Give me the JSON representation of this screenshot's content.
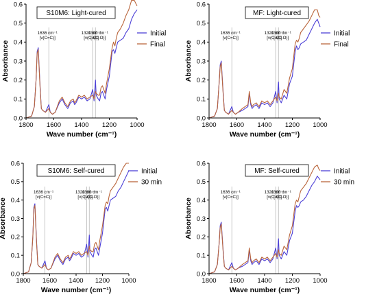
{
  "chart_data": [
    {
      "type": "line",
      "title": "S10M6: Light-cured",
      "xlabel": "Wave number (cm⁻¹)",
      "ylabel": "Absorbance",
      "xlim": [
        1800,
        1000
      ],
      "ylim": [
        0,
        0.6
      ],
      "xticks": [
        1800,
        1600,
        1400,
        1200,
        1000
      ],
      "yticks": [
        0.0,
        0.1,
        0.2,
        0.3,
        0.4,
        0.5,
        0.6
      ],
      "annotations": [
        {
          "x": 1636,
          "line1": "1636 cm⁻¹",
          "line2": "[ν(C=C)]"
        },
        {
          "x": 1320,
          "line1": "1320 cm⁻¹",
          "line2": "[ν(C-O)]"
        },
        {
          "x": 1300,
          "line1": "1300 cm⁻¹",
          "line2": "[ν(C-O)]"
        }
      ],
      "legend_position": "right",
      "series": [
        {
          "name": "Initial",
          "color": "#4b3fd6",
          "x": [
            1800,
            1760,
            1740,
            1728,
            1720,
            1712,
            1700,
            1690,
            1680,
            1660,
            1636,
            1625,
            1610,
            1590,
            1560,
            1540,
            1520,
            1500,
            1480,
            1460,
            1450,
            1440,
            1420,
            1400,
            1380,
            1360,
            1340,
            1320,
            1310,
            1300,
            1295,
            1280,
            1270,
            1260,
            1250,
            1240,
            1230,
            1220,
            1200,
            1180,
            1170,
            1160,
            1150,
            1140,
            1120,
            1100,
            1080,
            1060,
            1040,
            1020,
            1000
          ],
          "y": [
            0.0,
            0.01,
            0.06,
            0.2,
            0.35,
            0.37,
            0.18,
            0.05,
            0.04,
            0.03,
            0.07,
            0.03,
            0.02,
            0.03,
            0.08,
            0.1,
            0.07,
            0.05,
            0.08,
            0.09,
            0.07,
            0.08,
            0.11,
            0.1,
            0.11,
            0.09,
            0.1,
            0.15,
            0.09,
            0.2,
            0.12,
            0.1,
            0.09,
            0.13,
            0.14,
            0.12,
            0.1,
            0.15,
            0.22,
            0.35,
            0.36,
            0.34,
            0.37,
            0.4,
            0.41,
            0.42,
            0.45,
            0.47,
            0.52,
            0.55,
            0.57
          ]
        },
        {
          "name": "Final",
          "color": "#b9653b",
          "x": [
            1800,
            1760,
            1740,
            1728,
            1720,
            1712,
            1700,
            1690,
            1680,
            1660,
            1636,
            1625,
            1610,
            1590,
            1560,
            1540,
            1520,
            1500,
            1480,
            1460,
            1450,
            1440,
            1420,
            1400,
            1380,
            1360,
            1340,
            1320,
            1310,
            1300,
            1295,
            1280,
            1270,
            1260,
            1250,
            1240,
            1230,
            1220,
            1200,
            1180,
            1170,
            1160,
            1150,
            1140,
            1120,
            1100,
            1080,
            1060,
            1040,
            1020,
            1000
          ],
          "y": [
            0.0,
            0.01,
            0.06,
            0.2,
            0.34,
            0.36,
            0.17,
            0.05,
            0.04,
            0.03,
            0.05,
            0.03,
            0.02,
            0.03,
            0.09,
            0.11,
            0.08,
            0.06,
            0.09,
            0.1,
            0.08,
            0.09,
            0.12,
            0.11,
            0.12,
            0.1,
            0.11,
            0.12,
            0.1,
            0.14,
            0.13,
            0.12,
            0.12,
            0.16,
            0.17,
            0.15,
            0.13,
            0.18,
            0.26,
            0.37,
            0.4,
            0.38,
            0.42,
            0.45,
            0.47,
            0.5,
            0.54,
            0.57,
            0.62,
            0.62,
            0.59
          ]
        }
      ]
    },
    {
      "type": "line",
      "title": "MF: Light-cured",
      "xlabel": "Wave number (cm⁻¹)",
      "ylabel": "Absorbance",
      "xlim": [
        1800,
        1000
      ],
      "ylim": [
        0,
        0.6
      ],
      "xticks": [
        1800,
        1600,
        1400,
        1200,
        1000
      ],
      "yticks": [
        0.0,
        0.1,
        0.2,
        0.3,
        0.4,
        0.5,
        0.6
      ],
      "annotations": [
        {
          "x": 1636,
          "line1": "1636 cm⁻¹",
          "line2": "[ν(C=C)]"
        },
        {
          "x": 1320,
          "line1": "1320 cm⁻¹",
          "line2": "[ν(C-O)]"
        },
        {
          "x": 1300,
          "line1": "1300 cm⁻¹",
          "line2": "[ν(C-O)]"
        }
      ],
      "legend_position": "right",
      "series": [
        {
          "name": "Initial",
          "color": "#4b3fd6",
          "x": [
            1800,
            1760,
            1740,
            1728,
            1720,
            1712,
            1700,
            1690,
            1680,
            1660,
            1636,
            1625,
            1610,
            1590,
            1560,
            1540,
            1520,
            1510,
            1500,
            1490,
            1480,
            1460,
            1440,
            1420,
            1400,
            1380,
            1360,
            1340,
            1320,
            1310,
            1300,
            1295,
            1280,
            1260,
            1240,
            1220,
            1200,
            1180,
            1170,
            1160,
            1150,
            1140,
            1120,
            1100,
            1080,
            1060,
            1040,
            1020,
            1010,
            1000
          ],
          "y": [
            0.0,
            0.01,
            0.05,
            0.18,
            0.28,
            0.3,
            0.15,
            0.04,
            0.03,
            0.02,
            0.06,
            0.03,
            0.02,
            0.03,
            0.04,
            0.05,
            0.06,
            0.13,
            0.07,
            0.05,
            0.06,
            0.07,
            0.05,
            0.08,
            0.07,
            0.08,
            0.06,
            0.08,
            0.14,
            0.08,
            0.19,
            0.1,
            0.08,
            0.12,
            0.1,
            0.18,
            0.22,
            0.35,
            0.38,
            0.36,
            0.37,
            0.39,
            0.4,
            0.41,
            0.44,
            0.47,
            0.5,
            0.52,
            0.5,
            0.48
          ]
        },
        {
          "name": "Final",
          "color": "#b9653b",
          "x": [
            1800,
            1760,
            1740,
            1728,
            1720,
            1712,
            1700,
            1690,
            1680,
            1660,
            1636,
            1625,
            1610,
            1590,
            1560,
            1540,
            1520,
            1510,
            1500,
            1490,
            1480,
            1460,
            1440,
            1420,
            1400,
            1380,
            1360,
            1340,
            1320,
            1310,
            1300,
            1295,
            1280,
            1260,
            1240,
            1220,
            1200,
            1180,
            1170,
            1160,
            1150,
            1140,
            1120,
            1100,
            1080,
            1060,
            1040,
            1020,
            1010,
            1000
          ],
          "y": [
            0.0,
            0.01,
            0.05,
            0.18,
            0.27,
            0.29,
            0.14,
            0.04,
            0.03,
            0.02,
            0.04,
            0.03,
            0.02,
            0.03,
            0.05,
            0.06,
            0.07,
            0.14,
            0.08,
            0.06,
            0.07,
            0.08,
            0.06,
            0.09,
            0.08,
            0.09,
            0.07,
            0.09,
            0.11,
            0.09,
            0.13,
            0.11,
            0.1,
            0.15,
            0.13,
            0.21,
            0.26,
            0.39,
            0.41,
            0.4,
            0.42,
            0.45,
            0.47,
            0.49,
            0.51,
            0.54,
            0.57,
            0.57,
            0.54,
            0.53
          ]
        }
      ]
    },
    {
      "type": "line",
      "title": "S10M6: Self-cured",
      "xlabel": "Wave number (cm⁻¹)",
      "ylabel": "Absorbance",
      "xlim": [
        1800,
        1000
      ],
      "ylim": [
        0,
        0.6
      ],
      "xticks": [
        1800,
        1600,
        1400,
        1200,
        1000
      ],
      "yticks": [
        0.0,
        0.1,
        0.2,
        0.3,
        0.4,
        0.5,
        0.6
      ],
      "annotations": [
        {
          "x": 1636,
          "line1": "1636 cm⁻¹",
          "line2": "[ν(C=C)]"
        },
        {
          "x": 1320,
          "line1": "1320 cm⁻¹",
          "line2": "[ν(C-O)]"
        },
        {
          "x": 1300,
          "line1": "1300 cm⁻¹",
          "line2": "[ν(C-O)]"
        }
      ],
      "legend_position": "right",
      "series": [
        {
          "name": "Initial",
          "color": "#4b3fd6",
          "x": [
            1800,
            1760,
            1740,
            1728,
            1720,
            1712,
            1700,
            1690,
            1680,
            1660,
            1636,
            1625,
            1610,
            1590,
            1560,
            1540,
            1520,
            1500,
            1480,
            1460,
            1450,
            1440,
            1420,
            1400,
            1380,
            1360,
            1340,
            1320,
            1310,
            1300,
            1295,
            1280,
            1270,
            1260,
            1250,
            1240,
            1230,
            1220,
            1200,
            1180,
            1170,
            1160,
            1150,
            1140,
            1120,
            1100,
            1080,
            1060,
            1040,
            1020,
            1000
          ],
          "y": [
            0.0,
            0.01,
            0.06,
            0.2,
            0.36,
            0.38,
            0.18,
            0.05,
            0.04,
            0.03,
            0.07,
            0.03,
            0.02,
            0.03,
            0.08,
            0.1,
            0.07,
            0.05,
            0.08,
            0.09,
            0.07,
            0.08,
            0.11,
            0.1,
            0.11,
            0.09,
            0.1,
            0.16,
            0.09,
            0.21,
            0.12,
            0.1,
            0.09,
            0.13,
            0.14,
            0.12,
            0.1,
            0.14,
            0.22,
            0.35,
            0.36,
            0.34,
            0.37,
            0.4,
            0.41,
            0.42,
            0.45,
            0.47,
            0.5,
            0.53,
            0.56
          ]
        },
        {
          "name": "30 min",
          "color": "#b9653b",
          "x": [
            1800,
            1760,
            1740,
            1728,
            1720,
            1712,
            1700,
            1690,
            1680,
            1660,
            1636,
            1625,
            1610,
            1590,
            1560,
            1540,
            1520,
            1500,
            1480,
            1460,
            1450,
            1440,
            1420,
            1400,
            1380,
            1360,
            1340,
            1320,
            1310,
            1300,
            1295,
            1280,
            1270,
            1260,
            1250,
            1240,
            1230,
            1220,
            1200,
            1180,
            1170,
            1160,
            1150,
            1140,
            1120,
            1100,
            1080,
            1060,
            1040,
            1020,
            1000
          ],
          "y": [
            0.0,
            0.01,
            0.06,
            0.2,
            0.35,
            0.37,
            0.17,
            0.05,
            0.04,
            0.03,
            0.05,
            0.03,
            0.02,
            0.03,
            0.09,
            0.11,
            0.08,
            0.06,
            0.09,
            0.1,
            0.08,
            0.09,
            0.12,
            0.11,
            0.12,
            0.1,
            0.11,
            0.12,
            0.1,
            0.15,
            0.13,
            0.12,
            0.12,
            0.16,
            0.17,
            0.15,
            0.13,
            0.18,
            0.26,
            0.37,
            0.39,
            0.38,
            0.42,
            0.45,
            0.47,
            0.49,
            0.52,
            0.55,
            0.58,
            0.6,
            0.6
          ]
        }
      ]
    },
    {
      "type": "line",
      "title": "MF: Self-cured",
      "xlabel": "Wave number (cm⁻¹)",
      "ylabel": "Absorbance",
      "xlim": [
        1800,
        1000
      ],
      "ylim": [
        0,
        0.6
      ],
      "xticks": [
        1800,
        1600,
        1400,
        1200,
        1000
      ],
      "yticks": [
        0.0,
        0.1,
        0.2,
        0.3,
        0.4,
        0.5,
        0.6
      ],
      "annotations": [
        {
          "x": 1636,
          "line1": "1636 cm⁻¹",
          "line2": "[ν(C=C)]"
        },
        {
          "x": 1320,
          "line1": "1320 cm⁻¹",
          "line2": "[ν(C-O)]"
        },
        {
          "x": 1300,
          "line1": "1300 cm⁻¹",
          "line2": "[ν(C-O)]"
        }
      ],
      "legend_position": "right",
      "series": [
        {
          "name": "Initial",
          "color": "#4b3fd6",
          "x": [
            1800,
            1760,
            1740,
            1728,
            1720,
            1712,
            1700,
            1690,
            1680,
            1660,
            1636,
            1625,
            1610,
            1590,
            1560,
            1540,
            1520,
            1510,
            1500,
            1490,
            1480,
            1460,
            1440,
            1420,
            1400,
            1380,
            1360,
            1340,
            1320,
            1310,
            1300,
            1295,
            1280,
            1260,
            1240,
            1220,
            1200,
            1180,
            1170,
            1160,
            1150,
            1140,
            1120,
            1100,
            1080,
            1060,
            1040,
            1020,
            1010,
            1000
          ],
          "y": [
            0.0,
            0.01,
            0.05,
            0.16,
            0.26,
            0.28,
            0.14,
            0.04,
            0.03,
            0.02,
            0.06,
            0.03,
            0.02,
            0.03,
            0.04,
            0.05,
            0.06,
            0.13,
            0.07,
            0.05,
            0.06,
            0.07,
            0.05,
            0.08,
            0.07,
            0.08,
            0.06,
            0.08,
            0.14,
            0.08,
            0.19,
            0.1,
            0.08,
            0.12,
            0.1,
            0.18,
            0.22,
            0.34,
            0.37,
            0.36,
            0.37,
            0.39,
            0.4,
            0.42,
            0.45,
            0.48,
            0.5,
            0.53,
            0.52,
            0.51
          ]
        },
        {
          "name": "30 min",
          "color": "#b9653b",
          "x": [
            1800,
            1760,
            1740,
            1728,
            1720,
            1712,
            1700,
            1690,
            1680,
            1660,
            1636,
            1625,
            1610,
            1590,
            1560,
            1540,
            1520,
            1510,
            1500,
            1490,
            1480,
            1460,
            1440,
            1420,
            1400,
            1380,
            1360,
            1340,
            1320,
            1310,
            1300,
            1295,
            1280,
            1260,
            1240,
            1220,
            1200,
            1180,
            1170,
            1160,
            1150,
            1140,
            1120,
            1100,
            1080,
            1060,
            1040,
            1020,
            1010,
            1000
          ],
          "y": [
            0.0,
            0.01,
            0.05,
            0.16,
            0.25,
            0.27,
            0.13,
            0.04,
            0.03,
            0.02,
            0.04,
            0.03,
            0.02,
            0.03,
            0.05,
            0.06,
            0.07,
            0.14,
            0.08,
            0.06,
            0.07,
            0.08,
            0.06,
            0.09,
            0.08,
            0.09,
            0.07,
            0.09,
            0.11,
            0.09,
            0.13,
            0.11,
            0.1,
            0.15,
            0.13,
            0.21,
            0.26,
            0.38,
            0.4,
            0.39,
            0.42,
            0.45,
            0.47,
            0.49,
            0.52,
            0.55,
            0.58,
            0.59,
            0.57,
            0.56
          ]
        }
      ]
    }
  ]
}
